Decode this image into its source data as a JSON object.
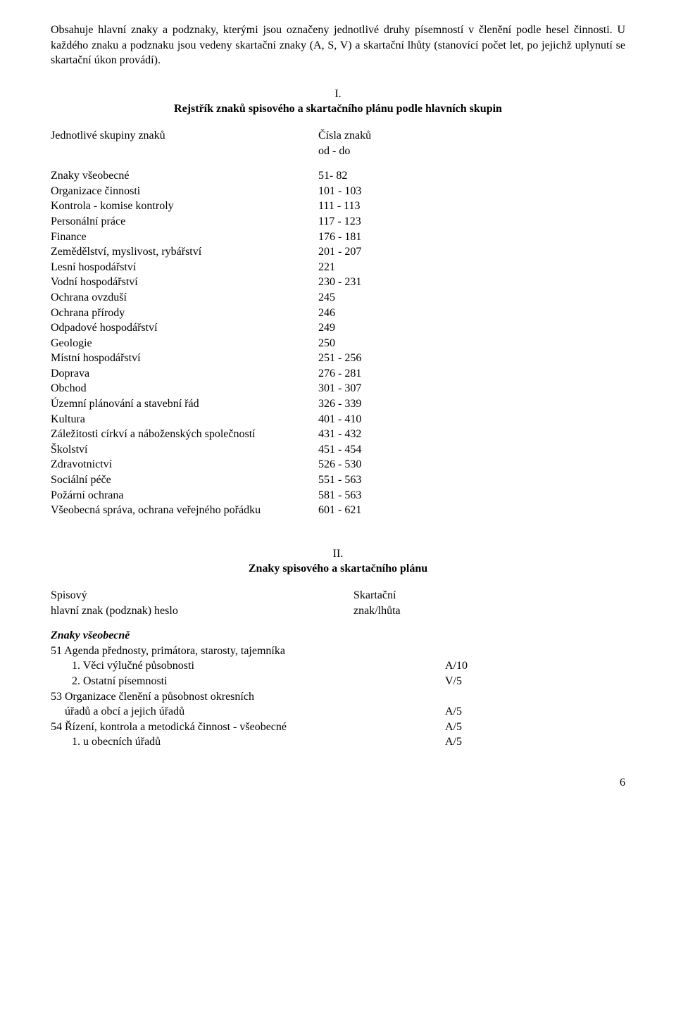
{
  "intro": {
    "p1": "Obsahuje hlavní znaky a podznaky, kterými jsou označeny jednotlivé druhy písemností v členění podle hesel činnosti. U každého znaku a podznaku jsou vedeny  skartační znaky (A, S, V)  a skartační lhůty (stanovící  počet let, po jejichž uplynutí se skartační úkon provádí)."
  },
  "section1": {
    "num": "I.",
    "title": "Rejstřík znaků spisového a skartačního plánu podle hlavních skupin",
    "groupsHeaderLeft": "Jednotlivé skupiny znaků",
    "groupsHeaderRight1": "Čísla znaků",
    "groupsHeaderRight2": "od - do",
    "rows": [
      {
        "label": "Znaky všeobecné",
        "val": "  51- 82"
      },
      {
        "label": "Organizace činnosti",
        "val": "101 - 103"
      },
      {
        "label": "Kontrola - komise kontroly",
        "val": "111 - 113"
      },
      {
        "label": "Personální práce",
        "val": "117 - 123"
      },
      {
        "label": "Finance",
        "val": "176 - 181"
      },
      {
        "label": "Zemědělství, myslivost, rybářství",
        "val": "201 - 207"
      },
      {
        "label": "Lesní hospodářství",
        "val": "221"
      },
      {
        "label": "Vodní hospodářství",
        "val": "230 - 231"
      },
      {
        "label": "Ochrana ovzduší",
        "val": "245"
      },
      {
        "label": "Ochrana přírody",
        "val": "246"
      },
      {
        "label": "Odpadové hospodářství",
        "val": "249"
      },
      {
        "label": "Geologie",
        "val": "250"
      },
      {
        "label": "Místní hospodářství",
        "val": "251 - 256"
      },
      {
        "label": "Doprava",
        "val": "276 - 281"
      },
      {
        "label": "Obchod",
        "val": "301 - 307"
      },
      {
        "label": "Územní plánování a stavební řád",
        "val": "326 - 339"
      },
      {
        "label": "Kultura",
        "val": "401 - 410"
      },
      {
        "label": "Záležitosti církví a náboženských společností",
        "val": "431 - 432"
      },
      {
        "label": "Školství",
        "val": "451 - 454"
      },
      {
        "label": "Zdravotnictví",
        "val": "526 - 530"
      },
      {
        "label": "Sociální péče",
        "val": "551 - 563"
      },
      {
        "label": "Požární ochrana",
        "val": "581 - 563"
      },
      {
        "label": "Všeobecná správa, ochrana veřejného pořádku",
        "val": "601 - 621"
      }
    ]
  },
  "section2": {
    "num": "II.",
    "title": "Znaky spisového a skartačního plánu",
    "head": {
      "l1": "Spisový",
      "l2": "hlavní znak (podznak) heslo",
      "r1": "Skartační",
      "r2": "znak/lhůta"
    },
    "groupHeading": "Znaky všeobecně",
    "rows": [
      {
        "c1": "51   Agenda přednosty, primátora, starosty, tajemníka",
        "c2": "",
        "cls": "indent1"
      },
      {
        "c1": "1. Věci výlučné působnosti",
        "c2": "A/10",
        "cls": "indent2"
      },
      {
        "c1": "2. Ostatní písemnosti",
        "c2": "V/5",
        "cls": "indent2"
      },
      {
        "c1": "53   Organizace členění a působnost okresních",
        "c2": "",
        "cls": "indent1"
      },
      {
        "c1": "úřadů a obcí a jejich úřadů",
        "c2": "A/5",
        "cls": "indent3"
      },
      {
        "c1": "54   Řízení, kontrola a metodická činnost - všeobecné",
        "c2": "A/5",
        "cls": "indent1"
      },
      {
        "c1": "1. u obecních úřadů",
        "c2": "A/5",
        "cls": "indent2"
      }
    ]
  },
  "pageNumber": "6"
}
